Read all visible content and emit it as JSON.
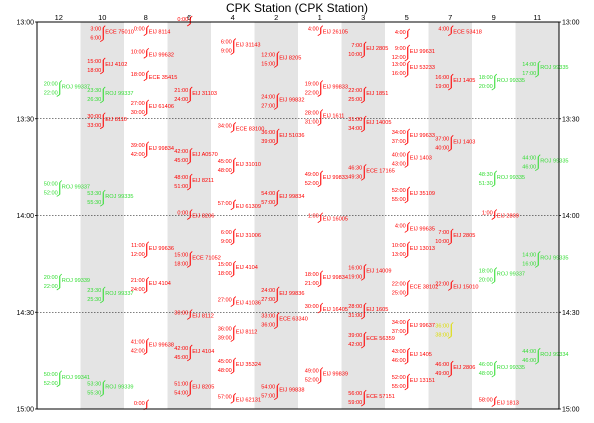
{
  "colors": {
    "red": "#ff0000",
    "green": "#33dd33",
    "yellow": "#dddd00",
    "band": "#e4e4e4"
  },
  "chart_data": {
    "type": "scatter",
    "title": "CPK Station (CPK Station)",
    "tracks": [
      "12",
      "10",
      "8",
      "6",
      "4",
      "2",
      "1",
      "3",
      "5",
      "7",
      "9",
      "11"
    ],
    "shaded_tracks": [
      "10",
      "6",
      "2",
      "3",
      "7",
      "11"
    ],
    "y_range": [
      "13:00",
      "15:00"
    ],
    "y_ticks": [
      "13:00",
      "13:30",
      "14:00",
      "14:30",
      "15:00"
    ],
    "dashed_lines": [
      "13:30",
      "14:00",
      "14:30"
    ],
    "events": [
      {
        "track": "10",
        "t": "13:03",
        "color": "red",
        "times": [
          "3:00",
          "6:00"
        ],
        "label": "ECE 75010"
      },
      {
        "track": "8",
        "t": "13:03",
        "color": "red",
        "times": [
          "0:00"
        ],
        "label": "EIJ 8114"
      },
      {
        "track": "6",
        "t": "13:00",
        "color": "red",
        "times": [
          "0:00"
        ],
        "label": ""
      },
      {
        "track": "4",
        "t": "13:07",
        "color": "red",
        "times": [
          "6:00",
          "9:00"
        ],
        "label": "EIJ 31143"
      },
      {
        "track": "2",
        "t": "13:11",
        "color": "red",
        "times": [
          "12:00",
          "15:00"
        ],
        "label": "EIJ 8205"
      },
      {
        "track": "1",
        "t": "13:03",
        "color": "red",
        "times": [
          "4:00"
        ],
        "label": "EIJ 26105"
      },
      {
        "track": "3",
        "t": "13:08",
        "color": "red",
        "times": [
          "7:00",
          "10:00"
        ],
        "label": "EIJ 2805"
      },
      {
        "track": "5",
        "t": "13:04",
        "color": "red",
        "times": [
          "4:00"
        ],
        "label": ""
      },
      {
        "track": "5",
        "t": "13:09",
        "color": "red",
        "times": [
          "9:00",
          "12:00"
        ],
        "label": "EIJ 99631"
      },
      {
        "track": "7",
        "t": "13:03",
        "color": "red",
        "times": [
          "4:00"
        ],
        "label": "ECE 53418"
      },
      {
        "track": "8",
        "t": "13:10",
        "color": "red",
        "times": [
          "10:00"
        ],
        "label": "EIJ 99632"
      },
      {
        "track": "10",
        "t": "13:13",
        "color": "red",
        "times": [
          "15:00",
          "18:00"
        ],
        "label": "EIJ 4102"
      },
      {
        "track": "5",
        "t": "13:14",
        "color": "red",
        "times": [
          "13:00",
          "16:00"
        ],
        "label": "EIJ 53233"
      },
      {
        "track": "11",
        "t": "13:14",
        "color": "green",
        "times": [
          "14:00",
          "17:00"
        ],
        "label": "ROJ 99335"
      },
      {
        "track": "7",
        "t": "13:18",
        "color": "red",
        "times": [
          "16:00",
          "19:00"
        ],
        "label": "EIJ 1405"
      },
      {
        "track": "9",
        "t": "13:18",
        "color": "green",
        "times": [
          "18:00",
          "20:00"
        ],
        "label": "ROJ 99335"
      },
      {
        "track": "8",
        "t": "13:17",
        "color": "red",
        "times": [
          "18:00"
        ],
        "label": "ECE 35415"
      },
      {
        "track": "1",
        "t": "13:20",
        "color": "red",
        "times": [
          "19:00",
          "22:00"
        ],
        "label": "EIJ 99833"
      },
      {
        "track": "12",
        "t": "13:20",
        "color": "green",
        "times": [
          "20:00",
          "22:00"
        ],
        "label": "ROJ 99337"
      },
      {
        "track": "6",
        "t": "13:22",
        "color": "red",
        "times": [
          "21:00",
          "24:00"
        ],
        "label": "EIJ 31103"
      },
      {
        "track": "10",
        "t": "13:22",
        "color": "green",
        "times": [
          "23:30",
          "26:30"
        ],
        "label": "ROJ 99337"
      },
      {
        "track": "3",
        "t": "13:22",
        "color": "red",
        "times": [
          "22:00",
          "25:00"
        ],
        "label": "EIJ 1851"
      },
      {
        "track": "2",
        "t": "13:24",
        "color": "red",
        "times": [
          "24:00",
          "27:00"
        ],
        "label": "EIJ 99832"
      },
      {
        "track": "8",
        "t": "13:26",
        "color": "red",
        "times": [
          "27:00",
          "30:00"
        ],
        "label": "EIJ 61406"
      },
      {
        "track": "1",
        "t": "13:29",
        "color": "red",
        "times": [
          "28:00",
          "31:00"
        ],
        "label": "EIJ 1611"
      },
      {
        "track": "10",
        "t": "13:30",
        "color": "red",
        "times": [
          "30:00",
          "33:00"
        ],
        "label": "EIJ 8110"
      },
      {
        "track": "3",
        "t": "13:31",
        "color": "red",
        "times": [
          "31:00",
          "34:00"
        ],
        "label": "EIJ 14005"
      },
      {
        "track": "4",
        "t": "13:33",
        "color": "red",
        "times": [
          "34:00"
        ],
        "label": "ECE 83100"
      },
      {
        "track": "2",
        "t": "13:35",
        "color": "red",
        "times": [
          "36:00",
          "39:00"
        ],
        "label": "EIJ 51036"
      },
      {
        "track": "5",
        "t": "13:35",
        "color": "red",
        "times": [
          "34:00",
          "37:00"
        ],
        "label": "EIJ 99633"
      },
      {
        "track": "7",
        "t": "13:37",
        "color": "red",
        "times": [
          "37:00",
          "40:00"
        ],
        "label": "EIJ 1403"
      },
      {
        "track": "8",
        "t": "13:39",
        "color": "red",
        "times": [
          "39:00",
          "42:00"
        ],
        "label": "EIJ 99834"
      },
      {
        "track": "6",
        "t": "13:41",
        "color": "red",
        "times": [
          "42:00",
          "45:00"
        ],
        "label": "EIJ A0570"
      },
      {
        "track": "5",
        "t": "13:42",
        "color": "red",
        "times": [
          "40:00",
          "43:00"
        ],
        "label": "EIJ 1403"
      },
      {
        "track": "11",
        "t": "13:43",
        "color": "green",
        "times": [
          "44:00",
          "46:00"
        ],
        "label": "ROJ 99335"
      },
      {
        "track": "4",
        "t": "13:44",
        "color": "red",
        "times": [
          "45:00",
          "48:00"
        ],
        "label": "EIJ 31010"
      },
      {
        "track": "3",
        "t": "13:46",
        "color": "red",
        "times": [
          "46:30",
          "49:30"
        ],
        "label": "ECE 17165"
      },
      {
        "track": "1",
        "t": "13:48",
        "color": "red",
        "times": [
          "49:00",
          "52:00"
        ],
        "label": "EIJ 99833"
      },
      {
        "track": "9",
        "t": "13:48",
        "color": "green",
        "times": [
          "48:30",
          "51:30"
        ],
        "label": "ROJ 99335"
      },
      {
        "track": "6",
        "t": "13:49",
        "color": "red",
        "times": [
          "48:00",
          "51:00"
        ],
        "label": "EIJ 8211"
      },
      {
        "track": "12",
        "t": "13:51",
        "color": "green",
        "times": [
          "50:00",
          "52:00"
        ],
        "label": "ROJ 99337"
      },
      {
        "track": "5",
        "t": "13:53",
        "color": "red",
        "times": [
          "52:00",
          "55:00"
        ],
        "label": "EIJ 35109"
      },
      {
        "track": "10",
        "t": "13:54",
        "color": "green",
        "times": [
          "53:30",
          "55:30"
        ],
        "label": "ROJ 99335"
      },
      {
        "track": "2",
        "t": "13:54",
        "color": "red",
        "times": [
          "54:00",
          "57:00"
        ],
        "label": "EIJ 99834"
      },
      {
        "track": "4",
        "t": "13:57",
        "color": "red",
        "times": [
          "57:00"
        ],
        "label": "EIJ 61309"
      },
      {
        "track": "6",
        "t": "14:00",
        "color": "red",
        "times": [
          "0:00"
        ],
        "label": "EIJ 8206"
      },
      {
        "track": "1",
        "t": "14:01",
        "color": "red",
        "times": [
          "1:00"
        ],
        "label": "EIJ 16005"
      },
      {
        "track": "9",
        "t": "14:00",
        "color": "red",
        "times": [
          "1:00"
        ],
        "label": "EIJ 2809"
      },
      {
        "track": "5",
        "t": "14:04",
        "color": "red",
        "times": [
          "4:00"
        ],
        "label": "EIJ 99635"
      },
      {
        "track": "4",
        "t": "14:06",
        "color": "red",
        "times": [
          "6:00",
          "9:00"
        ],
        "label": "EIJ 31006"
      },
      {
        "track": "7",
        "t": "14:06",
        "color": "red",
        "times": [
          "7:00",
          "10:00"
        ],
        "label": "EIJ 2805"
      },
      {
        "track": "8",
        "t": "14:10",
        "color": "red",
        "times": [
          "11:00",
          "12:00"
        ],
        "label": "EIJ 99636"
      },
      {
        "track": "5",
        "t": "14:10",
        "color": "red",
        "times": [
          "10:00",
          "13:00"
        ],
        "label": "EIJ 13013"
      },
      {
        "track": "6",
        "t": "14:13",
        "color": "red",
        "times": [
          "15:00",
          "18:00"
        ],
        "label": "ECE 71052"
      },
      {
        "track": "11",
        "t": "14:13",
        "color": "green",
        "times": [
          "14:00",
          "16:00"
        ],
        "label": "ROJ 99335"
      },
      {
        "track": "4",
        "t": "14:16",
        "color": "red",
        "times": [
          "15:00",
          "18:00"
        ],
        "label": "EIJ 4104"
      },
      {
        "track": "3",
        "t": "14:17",
        "color": "red",
        "times": [
          "16:00",
          "19:00"
        ],
        "label": "EIJ 14009"
      },
      {
        "track": "9",
        "t": "14:18",
        "color": "green",
        "times": [
          "18:00",
          "20:00"
        ],
        "label": "ROJ 99337"
      },
      {
        "track": "1",
        "t": "14:19",
        "color": "red",
        "times": [
          "18:00",
          "21:00"
        ],
        "label": "EIJ 99834"
      },
      {
        "track": "12",
        "t": "14:20",
        "color": "green",
        "times": [
          "20:00",
          "22:00"
        ],
        "label": "ROJ 99339"
      },
      {
        "track": "8",
        "t": "14:21",
        "color": "red",
        "times": [
          "21:00",
          "24:00"
        ],
        "label": "EIJ 4104"
      },
      {
        "track": "5",
        "t": "14:22",
        "color": "red",
        "times": [
          "22:00",
          "25:00"
        ],
        "label": "ECE 38102"
      },
      {
        "track": "7",
        "t": "14:22",
        "color": "red",
        "times": [
          "22:00"
        ],
        "label": "EIJ 15010"
      },
      {
        "track": "10",
        "t": "14:24",
        "color": "green",
        "times": [
          "23:30",
          "25:30"
        ],
        "label": "ROJ 99337"
      },
      {
        "track": "2",
        "t": "14:24",
        "color": "red",
        "times": [
          "24:00",
          "27:00"
        ],
        "label": "EIJ 99836"
      },
      {
        "track": "4",
        "t": "14:27",
        "color": "red",
        "times": [
          "27:00"
        ],
        "label": "EIJ 41036"
      },
      {
        "track": "1",
        "t": "14:29",
        "color": "red",
        "times": [
          "30:00"
        ],
        "label": "EIJ 16405"
      },
      {
        "track": "3",
        "t": "14:29",
        "color": "red",
        "times": [
          "28:00",
          "31:00"
        ],
        "label": "EIJ 1605"
      },
      {
        "track": "6",
        "t": "14:31",
        "color": "red",
        "times": [
          "30:00"
        ],
        "label": "EIJ 8112"
      },
      {
        "track": "2",
        "t": "14:32",
        "color": "red",
        "times": [
          "33:00",
          "36:00"
        ],
        "label": "ECE 63340"
      },
      {
        "track": "5",
        "t": "14:34",
        "color": "red",
        "times": [
          "34:00",
          "37:00"
        ],
        "label": "EIJ 99637"
      },
      {
        "track": "4",
        "t": "14:36",
        "color": "red",
        "times": [
          "36:00",
          "39:00"
        ],
        "label": "EIJ 8112"
      },
      {
        "track": "7",
        "t": "14:35",
        "color": "yellow",
        "times": [
          "36:00",
          "38:00"
        ],
        "label": ""
      },
      {
        "track": "3",
        "t": "14:38",
        "color": "red",
        "times": [
          "39:00",
          "42:00"
        ],
        "label": "ECE 56359"
      },
      {
        "track": "8",
        "t": "14:40",
        "color": "red",
        "times": [
          "41:00",
          "42:00"
        ],
        "label": "EIJ 99638"
      },
      {
        "track": "6",
        "t": "14:42",
        "color": "red",
        "times": [
          "42:00",
          "45:00"
        ],
        "label": "EIJ 4104"
      },
      {
        "track": "5",
        "t": "14:43",
        "color": "red",
        "times": [
          "43:00",
          "46:00"
        ],
        "label": "EIJ 1405"
      },
      {
        "track": "11",
        "t": "14:43",
        "color": "green",
        "times": [
          "44:00",
          "46:00"
        ],
        "label": "ROJ 99334"
      },
      {
        "track": "4",
        "t": "14:46",
        "color": "red",
        "times": [
          "45:00",
          "48:00"
        ],
        "label": "EIJ 35324"
      },
      {
        "track": "7",
        "t": "14:47",
        "color": "red",
        "times": [
          "46:00",
          "49:00"
        ],
        "label": "EIJ 2806"
      },
      {
        "track": "9",
        "t": "14:47",
        "color": "green",
        "times": [
          "46:00",
          "48:00"
        ],
        "label": "ROJ 99335"
      },
      {
        "track": "1",
        "t": "14:49",
        "color": "red",
        "times": [
          "49:00",
          "52:00"
        ],
        "label": "EIJ 99839"
      },
      {
        "track": "12",
        "t": "14:50",
        "color": "green",
        "times": [
          "50:00",
          "52:00"
        ],
        "label": "ROJ 99341"
      },
      {
        "track": "5",
        "t": "14:51",
        "color": "red",
        "times": [
          "52:00",
          "55:00"
        ],
        "label": "EIJ 13151"
      },
      {
        "track": "10",
        "t": "14:53",
        "color": "green",
        "times": [
          "53:30",
          "55:30"
        ],
        "label": "ROJ 99339"
      },
      {
        "track": "6",
        "t": "14:53",
        "color": "red",
        "times": [
          "51:00",
          "54:00"
        ],
        "label": "EIJ 8205"
      },
      {
        "track": "2",
        "t": "14:54",
        "color": "red",
        "times": [
          "54:00",
          "57:00"
        ],
        "label": "EIJ 99838"
      },
      {
        "track": "3",
        "t": "14:56",
        "color": "red",
        "times": [
          "56:00",
          "59:00"
        ],
        "label": "ECE 57151"
      },
      {
        "track": "4",
        "t": "14:57",
        "color": "red",
        "times": [
          "57:00"
        ],
        "label": "EIJ 62131"
      },
      {
        "track": "8",
        "t": "14:59",
        "color": "red",
        "times": [
          "0:00"
        ],
        "label": ""
      },
      {
        "track": "9",
        "t": "14:58",
        "color": "red",
        "times": [
          "58:00"
        ],
        "label": "EIJ 1813"
      }
    ]
  }
}
